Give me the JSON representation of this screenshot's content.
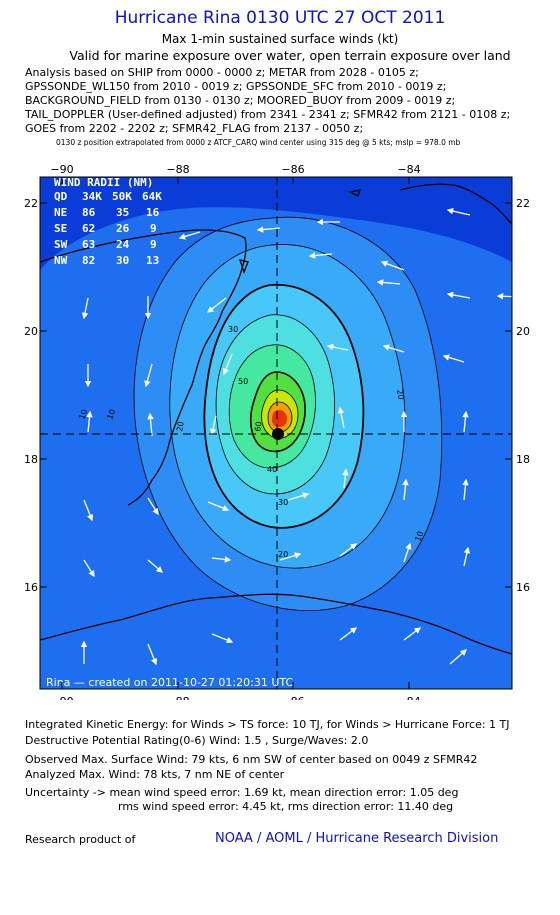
{
  "header": {
    "title": "Hurricane Rina 0130 UTC 27 OCT 2011",
    "subtitle": "Max 1-min sustained surface winds (kt)",
    "validity": "Valid for marine exposure over water, open terrain exposure over land"
  },
  "sources": [
    "Analysis based on SHIP from 0000 - 0000 z; METAR from 2028 - 0105 z;",
    "GPSSONDE_WL150 from 2010 - 0019 z; GPSSONDE_SFC from 2010 - 0019 z;",
    "BACKGROUND_FIELD from 0130 - 0130 z; MOORED_BUOY from 2009 - 0019 z;",
    "TAIL_DOPPLER (User-defined adjusted) from 2341 - 2341 z; SFMR42 from 2121 - 0108 z;",
    "GOES from 2202 - 2202 z; SFMR42_FLAG from 2137 - 0050 z;"
  ],
  "position_note": "0130 z position extrapolated from 0000 z ATCF_CARQ wind center using 315 deg @ 5 kts; mslp = 978.0 mb",
  "map": {
    "lon_labels": [
      "−90",
      "−88",
      "−86",
      "−84"
    ],
    "lat_labels": [
      "22",
      "20",
      "18",
      "16"
    ],
    "contour_labels": [
      "10",
      "20",
      "30",
      "40",
      "50",
      "60",
      "10",
      "20",
      "30",
      "20",
      "10"
    ],
    "created_label": "Rina — created on 2011-10-27 01:20:31 UTC",
    "colors": {
      "ocean": "#0a3cd8",
      "level1": "#1e6ef0",
      "level2": "#2e8df5",
      "level3": "#38aaf8",
      "level4": "#48c8f8",
      "level5": "#4ee0e0",
      "level6": "#44e8a0",
      "level7": "#50e040",
      "level8": "#c8e800",
      "level9": "#f0a000",
      "level10": "#e83000",
      "coast": "#000000",
      "arrow": "#ffffff"
    }
  },
  "wind_radii": {
    "title": "WIND RADII (NM)",
    "header": [
      "QD",
      "34K",
      "50K",
      "64K"
    ],
    "rows": [
      [
        "NE",
        "86",
        "35",
        "16"
      ],
      [
        "SE",
        "62",
        "26",
        "9"
      ],
      [
        "SW",
        "63",
        "24",
        "9"
      ],
      [
        "NW",
        "82",
        "30",
        "13"
      ]
    ]
  },
  "footer": {
    "ike": "Integrated Kinetic Energy:  for Winds > TS force: 10 TJ,  for Winds > Hurricane Force: 1 TJ",
    "dpr": "Destructive Potential Rating(0-6)   Wind: 1.5 , Surge/Waves: 2.0",
    "observed": "Observed Max. Surface Wind: 79 kts, 6 nm SW of center based on 0049 z SFMR42",
    "analyzed": "Analyzed Max. Wind: 78 kts, 7 nm NE of center",
    "uncertainty1": "Uncertainty -> mean wind speed error: 1.69 kt,   mean direction error: 1.05 deg",
    "uncertainty2": "rms wind speed error: 4.45 kt,   rms direction error: 11.40 deg",
    "research": "Research product of",
    "credit": "NOAA / AOML / Hurricane Research Division"
  }
}
